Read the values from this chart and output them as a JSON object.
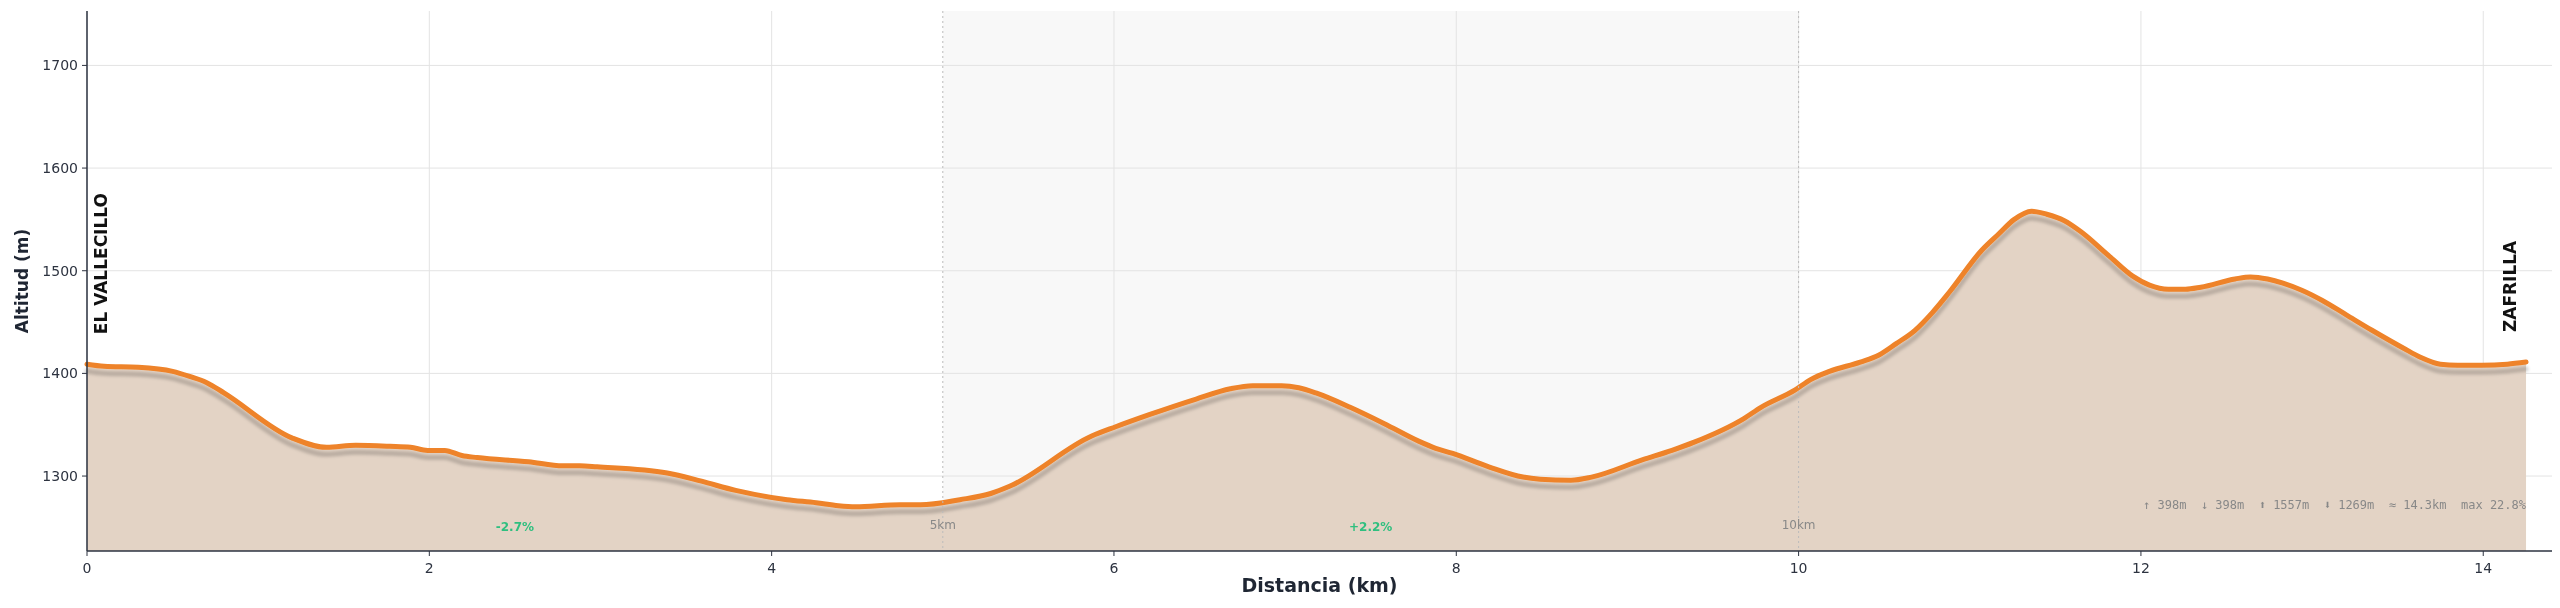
{
  "chart_data": {
    "type": "area",
    "xlabel": "Distancia (km)",
    "ylabel": "Altitud (m)",
    "x": [
      0,
      0.1,
      0.3,
      0.5,
      0.6,
      0.7,
      0.8,
      1.2,
      1.4,
      1.57,
      1.77,
      1.89,
      1.99,
      2.09,
      2.19,
      2.28,
      2.58,
      2.78,
      2.88,
      2.98,
      3.39,
      3.59,
      3.79,
      4.09,
      4.26,
      4.39,
      4.49,
      4.75,
      4.87,
      5.1,
      5.28,
      5.39,
      5.87,
      6.01,
      6.21,
      6.48,
      6.68,
      6.81,
      6.98,
      7.08,
      7.18,
      7.38,
      7.58,
      7.78,
      7.88,
      7.98,
      8.19,
      8.39,
      8.49,
      8.67,
      8.79,
      9.09,
      9.26,
      9.39,
      9.68,
      9.78,
      9.98,
      10.07,
      10.18,
      10.36,
      10.47,
      10.57,
      10.68,
      10.78,
      10.88,
      11.07,
      11.17,
      11.26,
      11.36,
      11.45,
      11.55,
      11.65,
      11.81,
      11.95,
      12.05,
      12.16,
      12.26,
      12.35,
      12.55,
      12.64,
      12.74,
      12.83,
      12.94,
      13.06,
      13.2,
      13.35,
      13.54,
      13.63,
      13.75,
      13.85,
      13.99,
      14.14,
      14.25
    ],
    "series": [
      {
        "color": "#ee8329",
        "values": [
          1409,
          1407,
          1406,
          1402,
          1397,
          1391,
          1381,
          1337,
          1328,
          1330,
          1329,
          1328,
          1325,
          1325,
          1320,
          1318,
          1314,
          1310,
          1310,
          1309,
          1303,
          1295,
          1286,
          1277,
          1274,
          1271,
          1270,
          1272,
          1272,
          1277,
          1283,
          1290,
          1339,
          1348,
          1360,
          1375,
          1385,
          1388,
          1388,
          1386,
          1381,
          1367,
          1351,
          1334,
          1327,
          1322,
          1309,
          1299,
          1297,
          1296,
          1299,
          1316,
          1325,
          1333,
          1356,
          1367,
          1384,
          1394,
          1402,
          1411,
          1418,
          1429,
          1442,
          1459,
          1479,
          1520,
          1536,
          1550,
          1558,
          1555,
          1549,
          1538,
          1515,
          1495,
          1486,
          1482,
          1482,
          1484,
          1492,
          1494,
          1492,
          1488,
          1481,
          1471,
          1457,
          1442,
          1424,
          1416,
          1409,
          1408,
          1408,
          1409,
          1411
        ]
      }
    ],
    "xlim": [
      0,
      14.39
    ],
    "ylim": [
      1227,
      1753
    ],
    "xticks": [
      0,
      2,
      4,
      6,
      8,
      10,
      12,
      14
    ],
    "yticks": [
      1300,
      1400,
      1500,
      1600,
      1700
    ],
    "grid": true,
    "bands": [
      {
        "axis": "x",
        "from": 5,
        "to": 10,
        "color": "#f8f8f8"
      }
    ],
    "ref_lines": [
      {
        "axis": "x",
        "value": 5,
        "label": "5km",
        "color": "#bbbbbb",
        "line_style": "dotted"
      },
      {
        "axis": "x",
        "value": 10,
        "label": "10km",
        "color": "#bbbbbb",
        "line_style": "dotted"
      }
    ],
    "annotations": [
      "EL VALLECILLO",
      "ZAFRILLA",
      "-2.7%",
      "+2.2%",
      "↑ 398m  ↓ 398m  ⬆ 1557m  ⬇ 1269m  ≈ 14.3km  max 22.8%"
    ]
  }
}
